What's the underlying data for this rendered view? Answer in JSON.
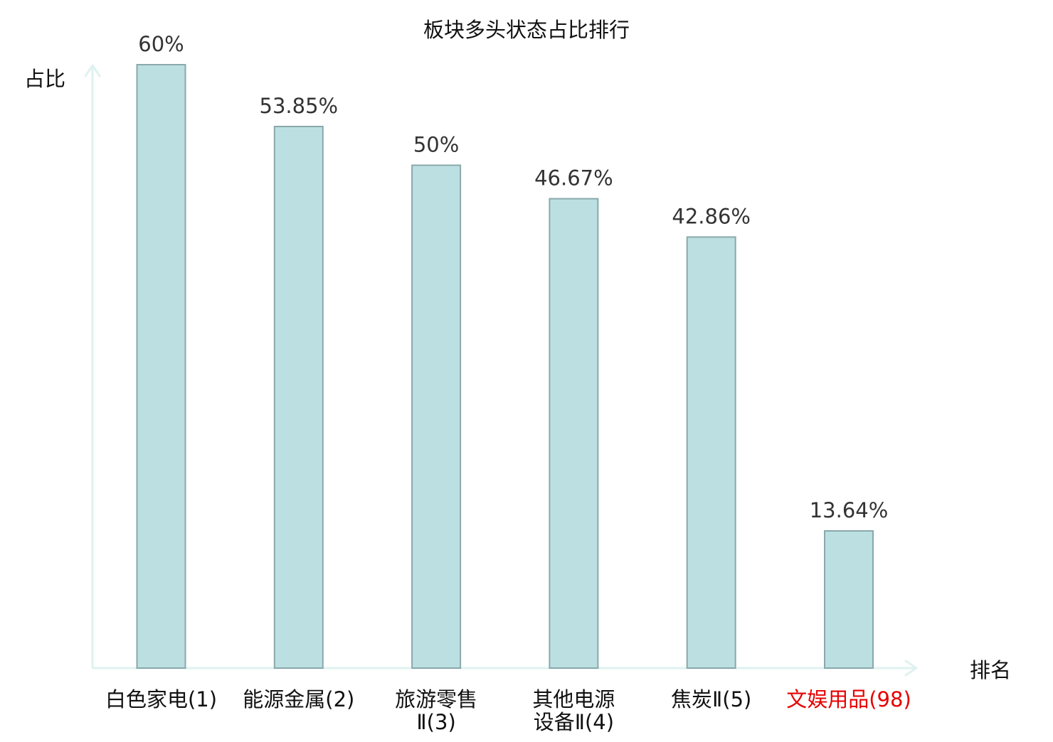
{
  "chart_data": {
    "type": "bar",
    "title": "板块多头状态占比排行",
    "ylabel": "占比",
    "xlabel": "排名",
    "ylim": [
      0,
      60
    ],
    "grid": false,
    "legend": "none",
    "categories": [
      {
        "lines": [
          "白色家电(1)"
        ],
        "highlight": false
      },
      {
        "lines": [
          "能源金属(2)"
        ],
        "highlight": false
      },
      {
        "lines": [
          "旅游零售",
          "Ⅱ(3)"
        ],
        "highlight": false
      },
      {
        "lines": [
          "其他电源",
          "设备Ⅱ(4)"
        ],
        "highlight": false
      },
      {
        "lines": [
          "焦炭Ⅱ(5)"
        ],
        "highlight": false
      },
      {
        "lines": [
          "文娱用品(98)"
        ],
        "highlight": true
      }
    ],
    "values": [
      60,
      53.85,
      50,
      46.67,
      42.86,
      13.64
    ],
    "value_labels": [
      "60%",
      "53.85%",
      "50%",
      "46.67%",
      "42.86%",
      "13.64%"
    ],
    "colors": {
      "bar_fill": "#bce0e2",
      "bar_stroke": "#8aa8ab",
      "axis": "#dff2ef",
      "text": "#333333",
      "label_text": "#111111",
      "highlight": "#e60000"
    }
  }
}
